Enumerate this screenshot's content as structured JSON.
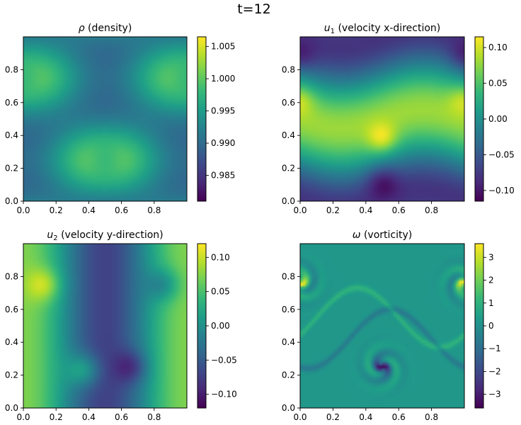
{
  "figure": {
    "title": "t=12"
  },
  "colors": {
    "viridis": [
      "#440154",
      "#482878",
      "#3e4989",
      "#31688e",
      "#26828e",
      "#1f9e89",
      "#35b779",
      "#6ece58",
      "#b5de2b",
      "#fde725"
    ]
  },
  "chart_data": [
    {
      "type": "heatmap",
      "title": "ρ (density)",
      "title_parts": {
        "main": "ρ",
        "rest": " (density)"
      },
      "field": "density",
      "grid": false,
      "xlim": [
        0,
        1
      ],
      "ylim": [
        0,
        1
      ],
      "xticks": [
        0.0,
        0.2,
        0.4,
        0.6,
        0.8
      ],
      "yticks": [
        0.0,
        0.2,
        0.4,
        0.6,
        0.8
      ],
      "xtick_labels": [
        "0.0",
        "0.2",
        "0.4",
        "0.6",
        "0.8"
      ],
      "ytick_labels": [
        "0.0",
        "0.2",
        "0.4",
        "0.6",
        "0.8"
      ],
      "colorbar": {
        "range": [
          0.981,
          1.0065
        ],
        "ticks": [
          0.985,
          0.99,
          0.995,
          1.0,
          1.005
        ],
        "tick_labels": [
          "0.985",
          "0.990",
          "0.995",
          "1.000",
          "1.005"
        ]
      }
    },
    {
      "type": "heatmap",
      "title": "u1 (velocity x-direction)",
      "title_parts": {
        "main": "u",
        "sub": "1",
        "rest": " (velocity x-direction)"
      },
      "field": "u1",
      "grid": false,
      "xlim": [
        0,
        1
      ],
      "ylim": [
        0,
        1
      ],
      "xticks": [
        0.0,
        0.2,
        0.4,
        0.6,
        0.8
      ],
      "yticks": [
        0.0,
        0.2,
        0.4,
        0.6,
        0.8
      ],
      "xtick_labels": [
        "0.0",
        "0.2",
        "0.4",
        "0.6",
        "0.8"
      ],
      "ytick_labels": [
        "0.0",
        "0.2",
        "0.4",
        "0.6",
        "0.8"
      ],
      "colorbar": {
        "range": [
          -0.115,
          0.115
        ],
        "ticks": [
          -0.1,
          -0.05,
          0.0,
          0.05,
          0.1
        ],
        "tick_labels": [
          "−0.10",
          "−0.05",
          "0.00",
          "0.05",
          "0.10"
        ]
      }
    },
    {
      "type": "heatmap",
      "title": "u2 (velocity y-direction)",
      "title_parts": {
        "main": "u",
        "sub": "2",
        "rest": " (velocity y-direction)"
      },
      "field": "u2",
      "grid": false,
      "xlim": [
        0,
        1
      ],
      "ylim": [
        0,
        1
      ],
      "xticks": [
        0.0,
        0.2,
        0.4,
        0.6,
        0.8
      ],
      "yticks": [
        0.0,
        0.2,
        0.4,
        0.6,
        0.8
      ],
      "xtick_labels": [
        "0.0",
        "0.2",
        "0.4",
        "0.6",
        "0.8"
      ],
      "ytick_labels": [
        "0.0",
        "0.2",
        "0.4",
        "0.6",
        "0.8"
      ],
      "colorbar": {
        "range": [
          -0.12,
          0.12
        ],
        "ticks": [
          -0.1,
          -0.05,
          0.0,
          0.05,
          0.1
        ],
        "tick_labels": [
          "−0.10",
          "−0.05",
          "0.00",
          "0.05",
          "0.10"
        ]
      }
    },
    {
      "type": "heatmap",
      "title": "ω (vorticity)",
      "title_parts": {
        "main": "ω",
        "rest": " (vorticity)"
      },
      "field": "vorticity",
      "grid": false,
      "xlim": [
        0,
        1
      ],
      "ylim": [
        0,
        1
      ],
      "xticks": [
        0.0,
        0.2,
        0.4,
        0.6,
        0.8
      ],
      "yticks": [
        0.0,
        0.2,
        0.4,
        0.6,
        0.8
      ],
      "xtick_labels": [
        "0.0",
        "0.2",
        "0.4",
        "0.6",
        "0.8"
      ],
      "ytick_labels": [
        "0.0",
        "0.2",
        "0.4",
        "0.6",
        "0.8"
      ],
      "colorbar": {
        "range": [
          -3.6,
          3.6
        ],
        "ticks": [
          -3,
          -2,
          -1,
          0,
          1,
          2,
          3
        ],
        "tick_labels": [
          "−3",
          "−2",
          "−1",
          "0",
          "1",
          "2",
          "3"
        ]
      }
    }
  ]
}
